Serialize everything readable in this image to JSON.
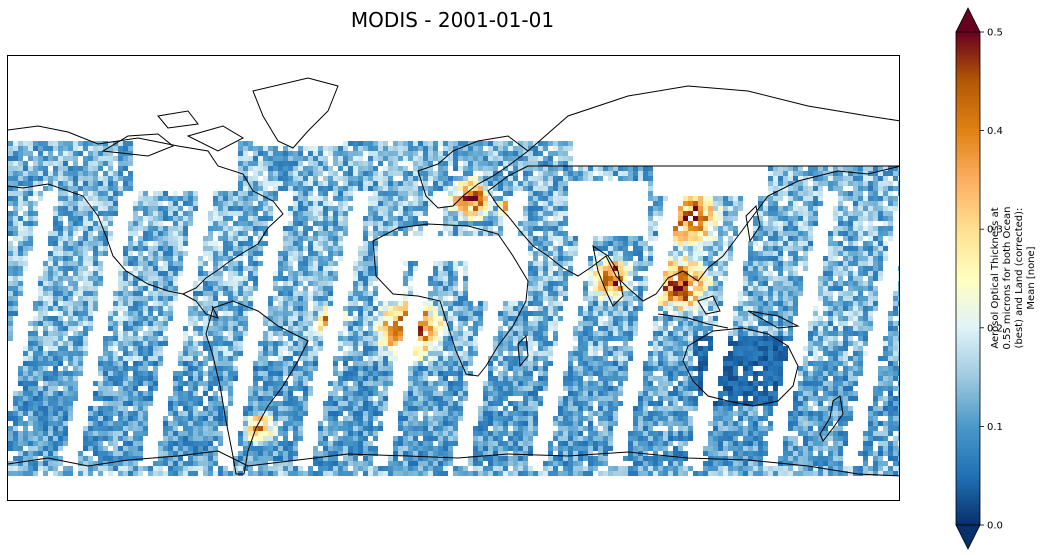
{
  "title": "MODIS - 2001-01-01",
  "colorbar": {
    "label_lines": [
      "Aerosol Optical Thickness at",
      "0.55 microns for both Ocean",
      "(best) and Land (corrected):",
      "Mean [none]"
    ],
    "min": 0.0,
    "max": 0.5,
    "ticks": [
      "0.0",
      "0.1",
      "0.2",
      "0.3",
      "0.4",
      "0.5"
    ],
    "extend": "both",
    "colors": [
      "#08306b",
      "#2171b5",
      "#4a98c9",
      "#9ecae1",
      "#e0f3f8",
      "#ffffbf",
      "#fee090",
      "#fdae61",
      "#e08214",
      "#b35806",
      "#67001f"
    ]
  },
  "map": {
    "projection": "plate-carree",
    "coastline_color": "#000000",
    "no_data_color": "#ffffff"
  }
}
